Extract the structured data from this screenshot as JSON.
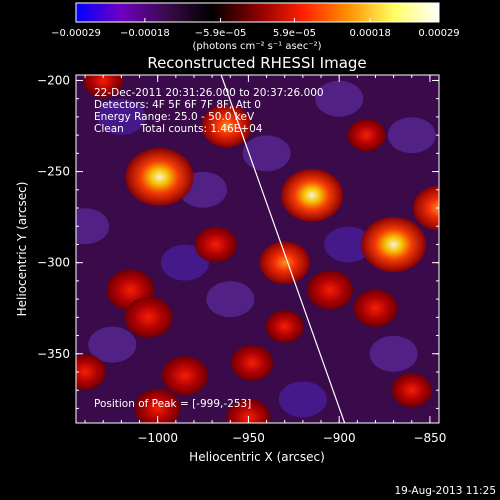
{
  "chart_data": {
    "type": "heatmap",
    "title": "Reconstructed RHESSI Image",
    "xlabel": "Heliocentric X (arcsec)",
    "ylabel": "Heliocentric Y (arcsec)",
    "xlim": [
      -1045,
      -845
    ],
    "ylim": [
      -388,
      -197
    ],
    "x_ticks": [
      -1000,
      -950,
      -900,
      -850
    ],
    "x_tick_labels": [
      "−1000",
      "−950",
      "−900",
      "−850"
    ],
    "y_ticks": [
      -200,
      -250,
      -300,
      -350
    ],
    "y_tick_labels": [
      "−200",
      "−250",
      "−300",
      "−350"
    ],
    "colorbar": {
      "min": -0.00029,
      "max": 0.00029,
      "tick_values": [
        -0.00029,
        -0.00018,
        -5.9e-05,
        5.9e-05,
        0.00018,
        0.00029
      ],
      "tick_labels": [
        "−0.00029",
        "−0.00018",
        "−5.9e−05",
        "5.9e−05",
        "0.00018",
        "0.00029"
      ],
      "units": "(photons cm⁻² s⁻¹ asec⁻²)",
      "colors": [
        "#0000ff",
        "#7000c0",
        "#3a0a4a",
        "#000000",
        "#8a0000",
        "#ff2000",
        "#ff9000",
        "#ffff60",
        "#ffffff"
      ]
    },
    "annotations": [
      "22-Dec-2011 20:31:26.000 to 20:37:26.000",
      "Detectors: 4F 5F 6F 7F 8F, Att 0",
      "Energy Range: 25.0 - 50.0 keV",
      "Clean     Total counts: 1.46E+04"
    ],
    "peak_label": "Position of Peak = [-999,-253]",
    "peak": {
      "x": -999,
      "y": -253
    },
    "limb_line": [
      [
        -965,
        -197
      ],
      [
        -897,
        -388
      ]
    ],
    "sources": [
      {
        "x": -999,
        "y": -253,
        "value": 1.0
      },
      {
        "x": -870,
        "y": -290,
        "value": 0.92
      },
      {
        "x": -915,
        "y": -263,
        "value": 0.85
      },
      {
        "x": -845,
        "y": -270,
        "value": 0.6
      },
      {
        "x": -962,
        "y": -225,
        "value": 0.55
      },
      {
        "x": -1015,
        "y": -315,
        "value": 0.5
      },
      {
        "x": -1005,
        "y": -330,
        "value": 0.5
      },
      {
        "x": -930,
        "y": -300,
        "value": 0.55
      },
      {
        "x": -905,
        "y": -315,
        "value": 0.45
      },
      {
        "x": -985,
        "y": -362,
        "value": 0.45
      },
      {
        "x": -968,
        "y": -290,
        "value": 0.35
      },
      {
        "x": -880,
        "y": -325,
        "value": 0.4
      },
      {
        "x": -948,
        "y": -355,
        "value": 0.35
      },
      {
        "x": -1000,
        "y": -380,
        "value": 0.45
      },
      {
        "x": -860,
        "y": -370,
        "value": 0.3
      },
      {
        "x": -1030,
        "y": -200,
        "value": 0.3
      },
      {
        "x": -1040,
        "y": -360,
        "value": 0.35
      },
      {
        "x": -930,
        "y": -335,
        "value": 0.25
      },
      {
        "x": -885,
        "y": -230,
        "value": 0.25
      },
      {
        "x": -950,
        "y": -385,
        "value": 0.4
      }
    ]
  },
  "footer_date": "19-Aug-2013 11:25"
}
